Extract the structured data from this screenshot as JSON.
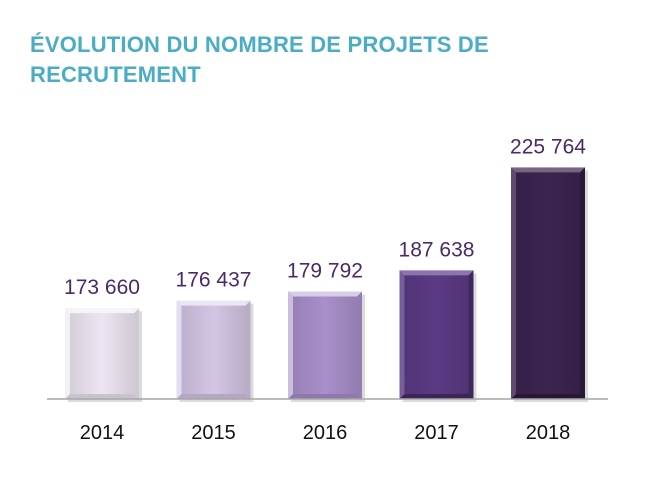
{
  "chart_data": {
    "type": "bar",
    "title_line1": "ÉVOLUTION DU NOMBRE DE PROJETS DE",
    "title_line2": "RECRUTEMENT",
    "categories": [
      "2014",
      "2015",
      "2016",
      "2017",
      "2018"
    ],
    "values": [
      173660,
      176437,
      179792,
      187638,
      225764
    ],
    "value_labels": [
      "173 660",
      "176 437",
      "179 792",
      "187 638",
      "225 764"
    ],
    "xlabel": "",
    "ylabel": "",
    "ylim": [
      140000,
      230000
    ],
    "grid": false,
    "legend": "none",
    "colors": [
      "#ede6f2",
      "#d3c5e4",
      "#a98fcb",
      "#5b3a85",
      "#3c2450"
    ]
  }
}
